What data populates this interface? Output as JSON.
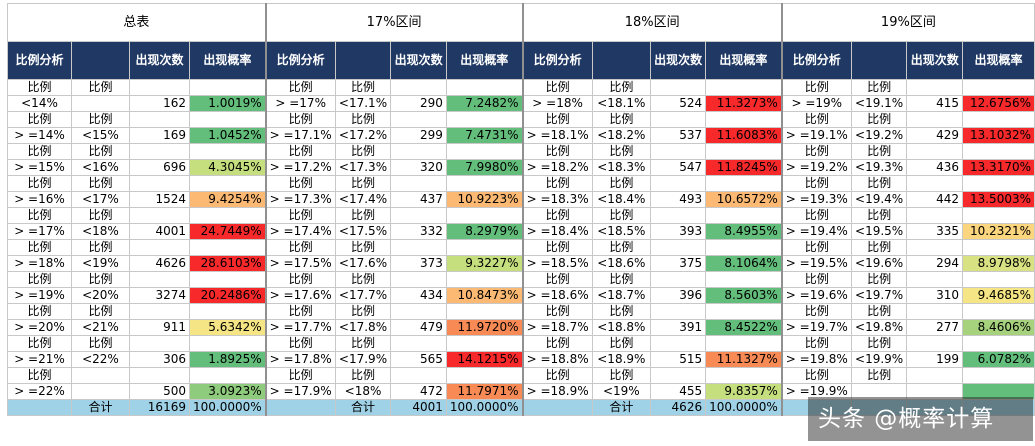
{
  "titles": [
    "总表",
    "17%区间",
    "18%区间",
    "19%区间"
  ],
  "headers": [
    [
      "比例分析",
      "",
      "出现次数",
      "出现概率"
    ],
    [
      "比例分析",
      "",
      "出现次数",
      "出现概率"
    ],
    [
      "比例分析",
      "",
      "出现次数",
      "出现概率"
    ],
    [
      "比例分析",
      "",
      "出现次数",
      "出现概率"
    ]
  ],
  "blocks": [
    [
      {
        "r1": [
          "比例",
          "比例"
        ],
        "r2": [
          "<14%",
          "",
          "162",
          "1.0019%"
        ],
        "color": "#63be7b"
      },
      {
        "r1": [
          "比例",
          "比例"
        ],
        "r2": [
          "> =14%",
          "<15%",
          "169",
          "1.0452%"
        ],
        "color": "#63be7b"
      },
      {
        "r1": [
          "比例",
          "比例"
        ],
        "r2": [
          "> =15%",
          "<16%",
          "696",
          "4.3045%"
        ],
        "color": "#c5df7f"
      },
      {
        "r1": [
          "比例",
          "比例"
        ],
        "r2": [
          "> =16%",
          "<17%",
          "1524",
          "9.4254%"
        ],
        "color": "#fbb973"
      },
      {
        "r1": [
          "比例",
          "比例"
        ],
        "r2": [
          "> =17%",
          "<18%",
          "4001",
          "24.7449%"
        ],
        "color": "#f8292a"
      },
      {
        "r1": [
          "比例",
          "比例"
        ],
        "r2": [
          "> =18%",
          "<19%",
          "4626",
          "28.6103%"
        ],
        "color": "#f8292a"
      },
      {
        "r1": [
          "比例",
          "比例"
        ],
        "r2": [
          "> =19%",
          "<20%",
          "3274",
          "20.2486%"
        ],
        "color": "#f8292a"
      },
      {
        "r1": [
          "比例",
          "比例"
        ],
        "r2": [
          "> =20%",
          "<21%",
          "911",
          "5.6342%"
        ],
        "color": "#f5e584"
      },
      {
        "r1": [
          "比例",
          "比例"
        ],
        "r2": [
          "> =21%",
          "<22%",
          "306",
          "1.8925%"
        ],
        "color": "#63be7b"
      },
      {
        "r1": [
          "比例",
          ""
        ],
        "r2": [
          "> =22%",
          "",
          "500",
          "3.0923%"
        ],
        "color": "#8fcb7d"
      }
    ],
    [
      {
        "r1": [
          "比例",
          "比例"
        ],
        "r2": [
          "> =17%",
          "<17.1%",
          "290",
          "7.2482%"
        ],
        "color": "#63be7b"
      },
      {
        "r1": [
          "比例",
          "比例"
        ],
        "r2": [
          "> =17.1%",
          "<17.2%",
          "299",
          "7.4731%"
        ],
        "color": "#63be7b"
      },
      {
        "r1": [
          "比例",
          "比例"
        ],
        "r2": [
          "> =17.2%",
          "<17.3%",
          "320",
          "7.9980%"
        ],
        "color": "#63be7b"
      },
      {
        "r1": [
          "比例",
          "比例"
        ],
        "r2": [
          "> =17.3%",
          "<17.4%",
          "437",
          "10.9223%"
        ],
        "color": "#fbb973"
      },
      {
        "r1": [
          "比例",
          "比例"
        ],
        "r2": [
          "> =17.4%",
          "<17.5%",
          "332",
          "8.2979%"
        ],
        "color": "#63be7b"
      },
      {
        "r1": [
          "比例",
          "比例"
        ],
        "r2": [
          "> =17.5%",
          "<17.6%",
          "373",
          "9.3227%"
        ],
        "color": "#c5df7f"
      },
      {
        "r1": [
          "比例",
          "比例"
        ],
        "r2": [
          "> =17.6%",
          "<17.7%",
          "434",
          "10.8473%"
        ],
        "color": "#fbb973"
      },
      {
        "r1": [
          "比例",
          "比例"
        ],
        "r2": [
          "> =17.7%",
          "<17.8%",
          "479",
          "11.9720%"
        ],
        "color": "#f88a55"
      },
      {
        "r1": [
          "比例",
          "比例"
        ],
        "r2": [
          "> =17.8%",
          "<17.9%",
          "565",
          "14.1215%"
        ],
        "color": "#f8292a"
      },
      {
        "r1": [
          "比例",
          "比例"
        ],
        "r2": [
          "> =17.9%",
          "<18%",
          "472",
          "11.7971%"
        ],
        "color": "#f88a55"
      }
    ],
    [
      {
        "r1": [
          "比例",
          "比例"
        ],
        "r2": [
          "> =18%",
          "<18.1%",
          "524",
          "11.3273%"
        ],
        "color": "#f8292a"
      },
      {
        "r1": [
          "比例",
          "比例"
        ],
        "r2": [
          "> =18.1%",
          "<18.2%",
          "537",
          "11.6083%"
        ],
        "color": "#f8292a"
      },
      {
        "r1": [
          "比例",
          "比例"
        ],
        "r2": [
          "> =18.2%",
          "<18.3%",
          "547",
          "11.8245%"
        ],
        "color": "#f8292a"
      },
      {
        "r1": [
          "比例",
          "比例"
        ],
        "r2": [
          "> =18.3%",
          "<18.4%",
          "493",
          "10.6572%"
        ],
        "color": "#fbb973"
      },
      {
        "r1": [
          "比例",
          "比例"
        ],
        "r2": [
          "> =18.4%",
          "<18.5%",
          "393",
          "8.4955%"
        ],
        "color": "#63be7b"
      },
      {
        "r1": [
          "比例",
          "比例"
        ],
        "r2": [
          "> =18.5%",
          "<18.6%",
          "375",
          "8.1064%"
        ],
        "color": "#63be7b"
      },
      {
        "r1": [
          "比例",
          "比例"
        ],
        "r2": [
          "> =18.6%",
          "<18.7%",
          "396",
          "8.5603%"
        ],
        "color": "#63be7b"
      },
      {
        "r1": [
          "比例",
          "比例"
        ],
        "r2": [
          "> =18.7%",
          "<18.8%",
          "391",
          "8.4522%"
        ],
        "color": "#63be7b"
      },
      {
        "r1": [
          "比例",
          "比例"
        ],
        "r2": [
          "> =18.8%",
          "<18.9%",
          "515",
          "11.1327%"
        ],
        "color": "#f88a55"
      },
      {
        "r1": [
          "比例",
          "比例"
        ],
        "r2": [
          "> =18.9%",
          "<19%",
          "455",
          "9.8357%"
        ],
        "color": "#c5df7f"
      }
    ],
    [
      {
        "r1": [
          "比例",
          "比例"
        ],
        "r2": [
          "> =19%",
          "<19.1%",
          "415",
          "12.6756%"
        ],
        "color": "#f8292a"
      },
      {
        "r1": [
          "比例",
          "比例"
        ],
        "r2": [
          "> =19.1%",
          "<19.2%",
          "429",
          "13.1032%"
        ],
        "color": "#f8292a"
      },
      {
        "r1": [
          "比例",
          "比例"
        ],
        "r2": [
          "> =19.2%",
          "<19.3%",
          "436",
          "13.3170%"
        ],
        "color": "#f8292a"
      },
      {
        "r1": [
          "比例",
          "比例"
        ],
        "r2": [
          "> =19.3%",
          "<19.4%",
          "442",
          "13.5003%"
        ],
        "color": "#f8292a"
      },
      {
        "r1": [
          "比例",
          "比例"
        ],
        "r2": [
          "> =19.4%",
          "<19.5%",
          "335",
          "10.2321%"
        ],
        "color": "#fcd57f"
      },
      {
        "r1": [
          "比例",
          "比例"
        ],
        "r2": [
          "> =19.5%",
          "<19.6%",
          "294",
          "8.9798%"
        ],
        "color": "#d8e282"
      },
      {
        "r1": [
          "比例",
          "比例"
        ],
        "r2": [
          "> =19.6%",
          "<19.7%",
          "310",
          "9.4685%"
        ],
        "color": "#f5e584"
      },
      {
        "r1": [
          "比例",
          "比例"
        ],
        "r2": [
          "> =19.7%",
          "<19.8%",
          "277",
          "8.4606%"
        ],
        "color": "#a6d27e"
      },
      {
        "r1": [
          "比例",
          "比例"
        ],
        "r2": [
          "> =19.8%",
          "<19.9%",
          "199",
          "6.0782%"
        ],
        "color": "#63be7b"
      },
      {
        "r1": [
          "比例",
          "比例"
        ],
        "r2": [
          "> =19.9%",
          "",
          "",
          ""
        ],
        "color": "#63be7b"
      }
    ]
  ],
  "totals": [
    {
      "label": "合计",
      "count": "16169",
      "prob": "100.0000%"
    },
    {
      "label": "合计",
      "count": "4001",
      "prob": "100.0000%"
    },
    {
      "label": "合计",
      "count": "4626",
      "prob": "100.0000%"
    },
    {
      "label": "",
      "count": "",
      "prob": ""
    }
  ],
  "watermark": "头条 @概率计算"
}
